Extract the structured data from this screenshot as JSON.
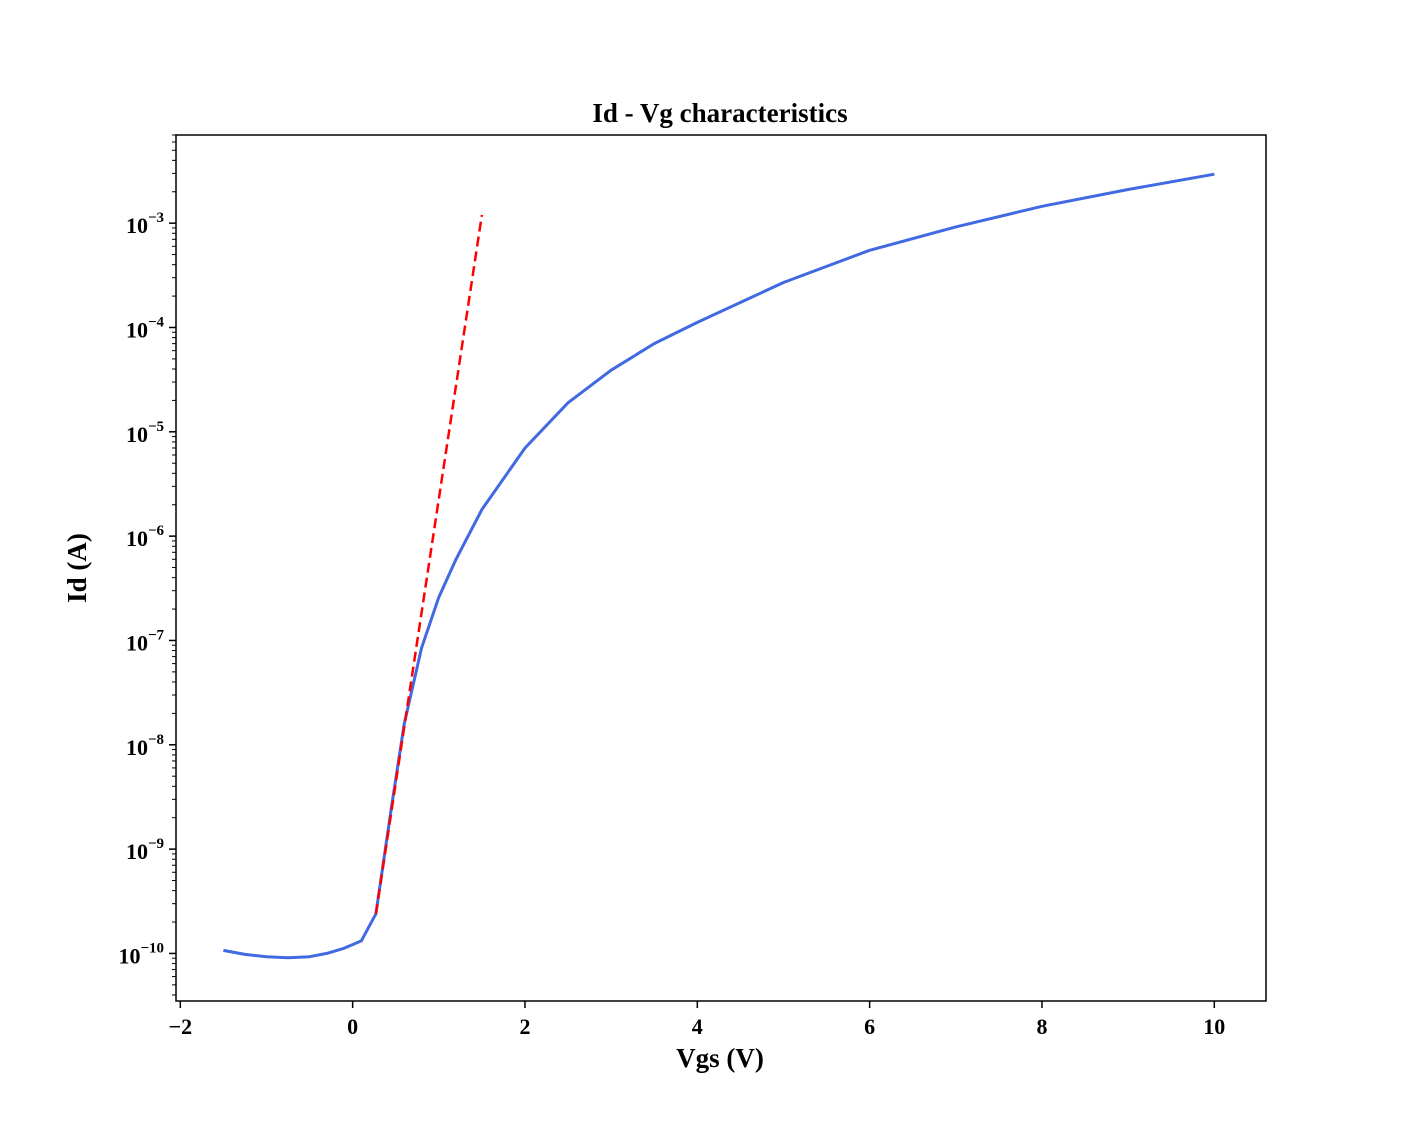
{
  "chart_data": {
    "type": "line",
    "title": "Id - Vg characteristics",
    "xlabel": "Vgs (V)",
    "ylabel": "Id (A)",
    "x_ticks": [
      "−2",
      "0",
      "2",
      "4",
      "6",
      "8",
      "10"
    ],
    "x_tick_values": [
      -2,
      0,
      2,
      4,
      6,
      8,
      10
    ],
    "y_ticks": [
      {
        "base": "10",
        "exp": "−10",
        "value": 1e-10
      },
      {
        "base": "10",
        "exp": "−9",
        "value": 1e-09
      },
      {
        "base": "10",
        "exp": "−8",
        "value": 1e-08
      },
      {
        "base": "10",
        "exp": "−7",
        "value": 1e-07
      },
      {
        "base": "10",
        "exp": "−6",
        "value": 1e-06
      },
      {
        "base": "10",
        "exp": "−5",
        "value": 1e-05
      },
      {
        "base": "10",
        "exp": "−4",
        "value": 0.0001
      },
      {
        "base": "10",
        "exp": "−3",
        "value": 0.001
      }
    ],
    "xlim": [
      -2.05,
      10.6
    ],
    "yscale": "log",
    "ylim": [
      3.5e-11,
      0.007
    ],
    "grid": false,
    "series": [
      {
        "color": "#4169e1",
        "linestyle": "solid",
        "x": [
          -1.5,
          -1.25,
          -1.0,
          -0.75,
          -0.5,
          -0.3,
          -0.1,
          0.1,
          0.27,
          0.45,
          0.6,
          0.8,
          1.0,
          1.2,
          1.5,
          2.0,
          2.5,
          3.0,
          3.5,
          4.0,
          5.0,
          6.0,
          7.0,
          8.0,
          9.0,
          10.0
        ],
        "y": [
          1.07e-10,
          9.8e-11,
          9.3e-11,
          9.1e-11,
          9.3e-11,
          1e-10,
          1.12e-10,
          1.32e-10,
          2.4e-10,
          2.5e-09,
          1.6e-08,
          8.5e-08,
          2.6e-07,
          6e-07,
          1.8e-06,
          7e-06,
          1.9e-05,
          3.9e-05,
          7e-05,
          0.000112,
          0.00027,
          0.00055,
          0.00092,
          0.00145,
          0.0021,
          0.00295
        ]
      },
      {
        "color": "#ff0000",
        "linestyle": "dashed",
        "x": [
          0.27,
          1.5
        ],
        "y": [
          2.4e-10,
          0.0012
        ]
      }
    ]
  }
}
